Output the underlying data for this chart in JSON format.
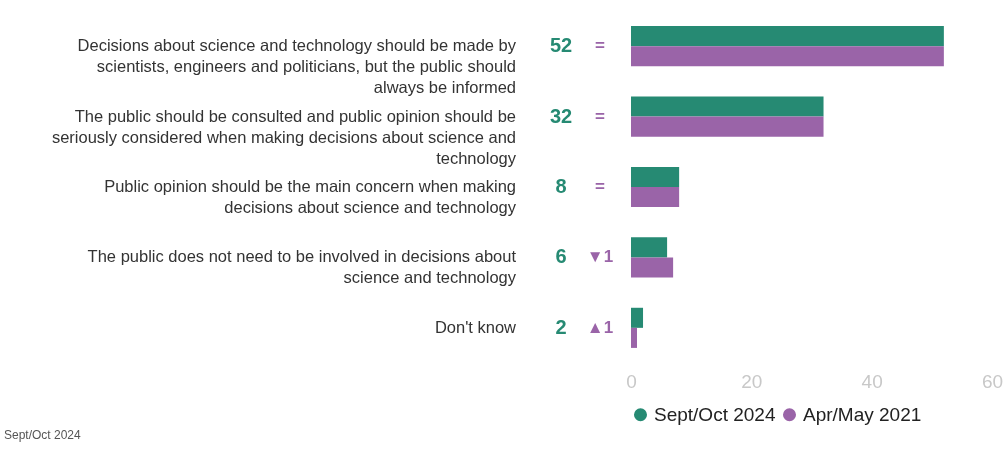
{
  "chart_data": {
    "type": "bar",
    "orientation": "horizontal",
    "categories": [
      "Decisions about science and technology should be made by scientists, engineers and politicians, but the public should always be informed",
      "The public should be consulted and public opinion should be seriously considered when making decisions about science and technology",
      "Public opinion should be the main concern when making decisions about science and technology",
      "The public does not need to be involved in decisions about science and technology",
      "Don't know"
    ],
    "series": [
      {
        "name": "Sept/Oct 2024",
        "color": "#268a73",
        "values": [
          52,
          32,
          8,
          6,
          2
        ],
        "value_labels": [
          "52",
          "32",
          "8",
          "6",
          "2"
        ]
      },
      {
        "name": "Apr/May 2021",
        "color": "#9a64a8",
        "values": [
          52,
          32,
          8,
          7,
          1
        ]
      }
    ],
    "xlim": [
      0,
      60
    ],
    "xticks": [
      0,
      20,
      40,
      60
    ],
    "grid": false,
    "legend": "bottom",
    "annotations": [
      "=",
      "=",
      "=",
      "▼1",
      "▲1",
      "Sept/Oct 2024"
    ]
  }
}
